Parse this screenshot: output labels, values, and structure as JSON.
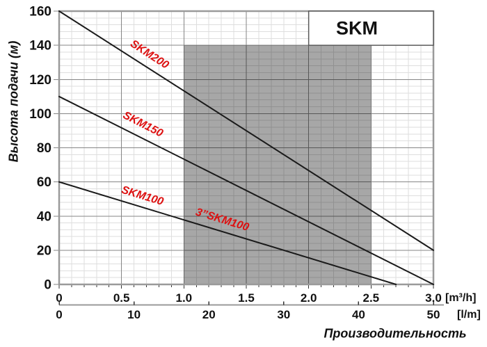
{
  "chart_data": {
    "type": "line",
    "title": "SKM",
    "xlabel": "Производительность",
    "ylabel": "Высота подачи (м)",
    "grid": true,
    "x_axis_primary": {
      "unit": "[m³/h]",
      "tick_labels": [
        "0",
        "0.5",
        "1.0",
        "1.5",
        "2.0",
        "2.5",
        "3.0"
      ],
      "range": [
        0,
        3
      ],
      "minor_step": 0.1
    },
    "x_axis_secondary": {
      "unit": "[l/m]",
      "tick_labels": [
        "0",
        "10",
        "20",
        "30",
        "40",
        "50"
      ],
      "range": [
        0,
        50
      ]
    },
    "y_axis": {
      "tick_labels": [
        "0",
        "20",
        "40",
        "60",
        "80",
        "100",
        "120",
        "140",
        "160"
      ],
      "range": [
        0,
        160
      ],
      "minor_step": 4
    },
    "series": [
      {
        "name": "SKM200",
        "points": [
          [
            0,
            160
          ],
          [
            3.0,
            20
          ]
        ]
      },
      {
        "name": "SKM150",
        "points": [
          [
            0,
            110
          ],
          [
            3.0,
            0
          ]
        ]
      },
      {
        "name": "SKM100",
        "points": [
          [
            0,
            60
          ],
          [
            2.7,
            0
          ]
        ]
      }
    ],
    "line_labels": [
      {
        "text": "SKM200",
        "x": 0.71,
        "y": 133,
        "angle": 33
      },
      {
        "text": "SKM150",
        "x": 0.66,
        "y": 92,
        "angle": 27
      },
      {
        "text": "SKM100",
        "x": 0.66,
        "y": 50,
        "angle": 17
      },
      {
        "text": "3”SKM100",
        "x": 1.3,
        "y": 36,
        "angle": 17
      }
    ],
    "operating_region": {
      "x": [
        1.0,
        2.5
      ],
      "y": [
        0,
        140
      ]
    },
    "title_box": {
      "x": [
        2.0,
        3.0
      ],
      "y": [
        140,
        160
      ]
    },
    "colors": {
      "series_line": "#1a1a1a",
      "label_red": "#dd1111",
      "grid_major": "#858585",
      "grid_minor": "#dedede",
      "border": "#9a9a9a",
      "tick": "#333333",
      "text": "#111111",
      "region_overlay": "rgba(0,0,0,0.345)",
      "title_box_border": "#5a5a5a"
    }
  }
}
